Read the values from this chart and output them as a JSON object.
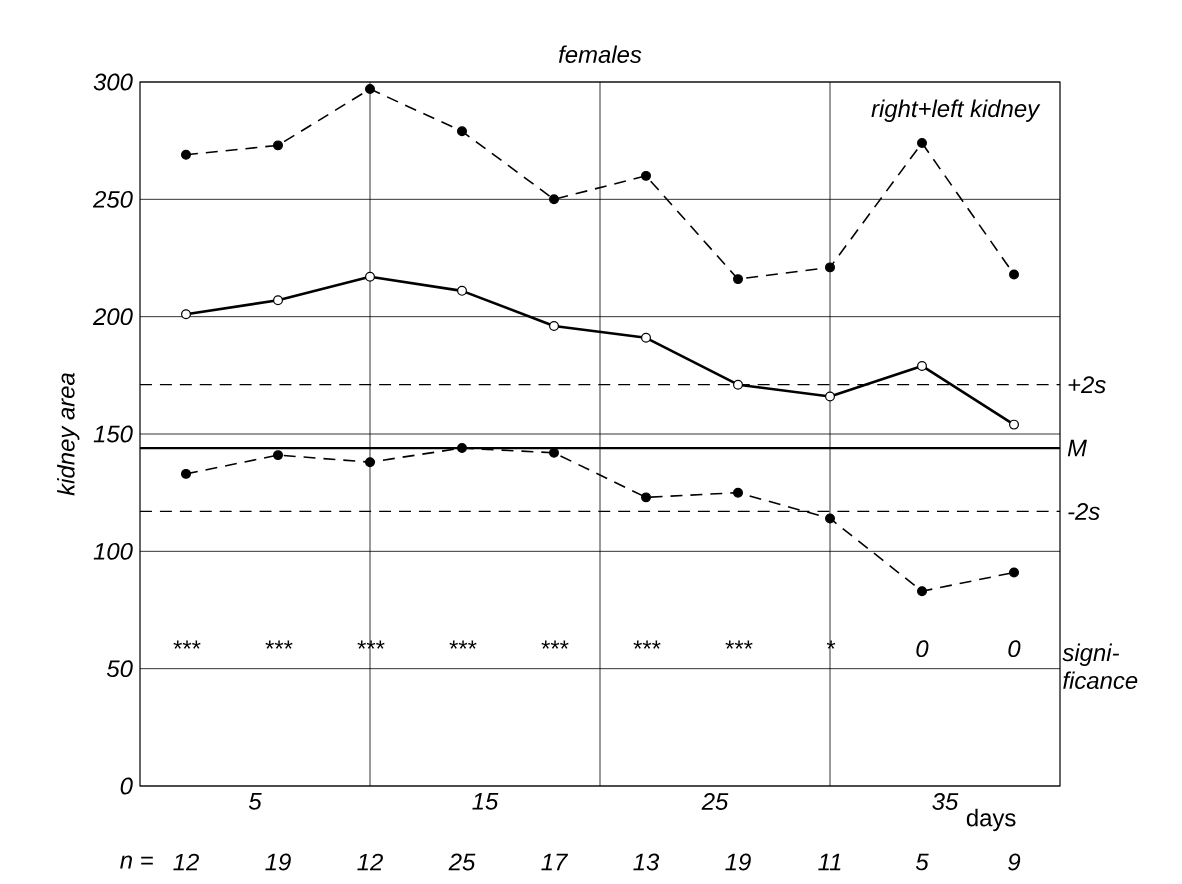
{
  "chart_data": {
    "type": "line",
    "title": "females",
    "xlabel": "days",
    "ylabel": "kidney area",
    "x": [
      2,
      6,
      10,
      14,
      18,
      22,
      26,
      30,
      34,
      38
    ],
    "series": [
      {
        "color": "#000000",
        "line_style": "dashed",
        "values": [
          269,
          273,
          297,
          279,
          250,
          260,
          216,
          221,
          274,
          218
        ]
      },
      {
        "color": "#000000",
        "line_style": "solid",
        "values": [
          201,
          207,
          217,
          211,
          196,
          191,
          171,
          166,
          179,
          154
        ]
      },
      {
        "color": "#000000",
        "line_style": "dashed",
        "values": [
          133,
          141,
          138,
          144,
          142,
          123,
          125,
          114,
          83,
          91
        ]
      }
    ],
    "marker": "circle",
    "xlim": [
      0,
      40
    ],
    "ylim": [
      0,
      300
    ],
    "xticks": [
      5,
      15,
      25,
      35
    ],
    "yticks": [
      0,
      50,
      100,
      150,
      200,
      250,
      300
    ],
    "grid": "y",
    "ref_lines": [
      {
        "axis": "y",
        "value": 171,
        "label": "+2s",
        "line_style": "dashed"
      },
      {
        "axis": "y",
        "value": 144,
        "label": "M",
        "line_style": "solid"
      },
      {
        "axis": "y",
        "value": 117,
        "label": "-2s",
        "line_style": "dashed"
      },
      {
        "axis": "x",
        "value": 10,
        "label": null
      },
      {
        "axis": "x",
        "value": 20,
        "label": null
      },
      {
        "axis": "x",
        "value": 30,
        "label": null
      }
    ],
    "annotations": [
      "right+left kidney",
      "signi-ficance",
      "n =",
      "***",
      "***",
      "***",
      "***",
      "***",
      "***",
      "***",
      "*",
      "0",
      "0",
      "12",
      "19",
      "12",
      "25",
      "17",
      "13",
      "19",
      "11",
      "5",
      "9"
    ]
  }
}
